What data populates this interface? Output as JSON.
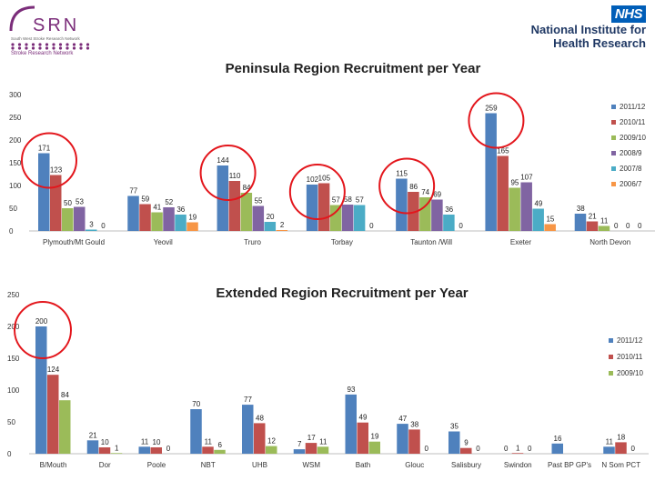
{
  "header": {
    "srn_abbr": "SRN",
    "srn_name": "Stroke Research Network",
    "srn_sub": "South West Stroke Research Network",
    "nhs_badge": "NHS",
    "nihr_line1": "National Institute for",
    "nihr_line2": "Health Research"
  },
  "colors": {
    "2011/12": "#4f81bd",
    "2010/11": "#c0504d",
    "2009/10": "#9bbb59",
    "2008/9": "#8064a2",
    "2007/8": "#4bacc6",
    "2006/7": "#f79646",
    "circle": "#e3161c",
    "srn_purple": "#7b2d7a"
  },
  "chart_data": [
    {
      "type": "bar",
      "title": "Peninsula Region Recruitment per Year",
      "categories": [
        "Plymouth/Mt Gould",
        "Yeovil",
        "Truro",
        "Torbay",
        "Taunton /Will",
        "Exeter",
        "North Devon"
      ],
      "series": [
        {
          "name": "2011/12",
          "values": [
            171,
            77,
            144,
            102,
            115,
            259,
            38
          ]
        },
        {
          "name": "2010/11",
          "values": [
            123,
            59,
            110,
            105,
            86,
            165,
            21
          ]
        },
        {
          "name": "2009/10",
          "values": [
            50,
            41,
            84,
            57,
            74,
            95,
            11
          ]
        },
        {
          "name": "2008/9",
          "values": [
            53,
            52,
            55,
            58,
            69,
            107,
            0
          ]
        },
        {
          "name": "2007/8",
          "values": [
            3,
            36,
            20,
            57,
            36,
            49,
            0
          ]
        },
        {
          "name": "2006/7",
          "values": [
            0,
            19,
            2,
            0,
            0,
            15,
            0
          ]
        }
      ],
      "yticks": [
        0,
        50,
        100,
        150,
        200,
        250,
        300
      ],
      "ylim": [
        0,
        300
      ],
      "legend": "right",
      "highlighted_categories": [
        "Plymouth/Mt Gould",
        "Truro",
        "Torbay",
        "Taunton /Will",
        "Exeter"
      ]
    },
    {
      "type": "bar",
      "title": "Extended Region Recruitment per Year",
      "categories": [
        "B/Mouth",
        "Dor",
        "Poole",
        "NBT",
        "UHB",
        "WSM",
        "Bath",
        "Glouc",
        "Salisbury",
        "Swindon",
        "Past BP GP's",
        "N Som PCT"
      ],
      "series": [
        {
          "name": "2011/12",
          "values": [
            200,
            21,
            11,
            70,
            77,
            7,
            93,
            47,
            35,
            0,
            16,
            11
          ]
        },
        {
          "name": "2010/11",
          "values": [
            124,
            10,
            10,
            11,
            48,
            17,
            49,
            38,
            9,
            1,
            null,
            18
          ]
        },
        {
          "name": "2009/10",
          "values": [
            84,
            1,
            0,
            6,
            12,
            11,
            19,
            0,
            0,
            0,
            null,
            0
          ]
        }
      ],
      "yticks": [
        0,
        50,
        100,
        150,
        200,
        250
      ],
      "ylim": [
        0,
        250
      ],
      "legend": "right",
      "highlighted_categories": [
        "B/Mouth"
      ]
    }
  ]
}
